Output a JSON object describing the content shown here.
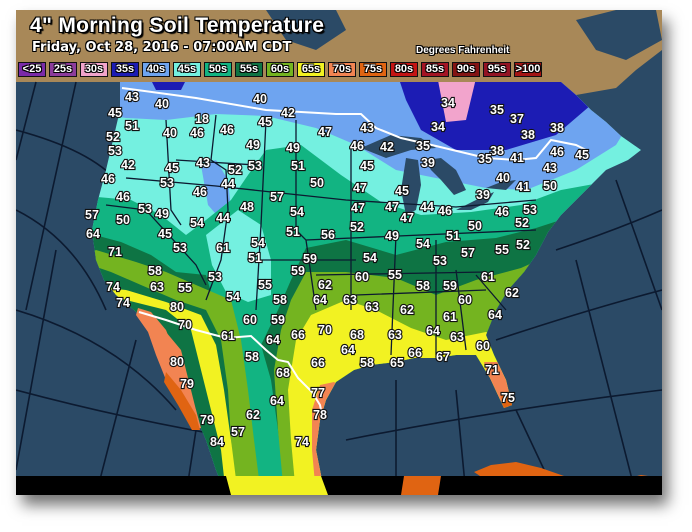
{
  "header": {
    "title": "4\" Morning Soil Temperature",
    "subtitle": "Friday, Oct 28, 2016 - 07:00AM CDT",
    "units": "Degrees Fahrenheit"
  },
  "legend": [
    {
      "label": "<25",
      "color": "#7a2aa8"
    },
    {
      "label": "25s",
      "color": "#8c3c9c"
    },
    {
      "label": "30s",
      "color": "#f2a4cc"
    },
    {
      "label": "35s",
      "color": "#1c1cb4"
    },
    {
      "label": "40s",
      "color": "#6ea4f0"
    },
    {
      "label": "45s",
      "color": "#74f0e0"
    },
    {
      "label": "50s",
      "color": "#12b482"
    },
    {
      "label": "55s",
      "color": "#0e7444"
    },
    {
      "label": "60s",
      "color": "#74b420"
    },
    {
      "label": "65s",
      "color": "#f2f222"
    },
    {
      "label": "70s",
      "color": "#f28452"
    },
    {
      "label": "75s",
      "color": "#e06412"
    },
    {
      "label": "80s",
      "color": "#c41414"
    },
    {
      "label": "85s",
      "color": "#a41424"
    },
    {
      "label": "90s",
      "color": "#841414"
    },
    {
      "label": "95s",
      "color": "#941424"
    },
    {
      "label": ">100",
      "color": "#a41414"
    }
  ],
  "colors": {
    "ocean": "#2b4a66",
    "unmapped_land": "#a88858",
    "borders": "#ffffff",
    "lines": "#0c1a30"
  },
  "station_values": [
    43,
    40,
    40,
    45,
    51,
    18,
    40,
    46,
    46,
    45,
    42,
    47,
    52,
    53,
    42,
    49,
    49,
    45,
    43,
    52,
    53,
    51,
    46,
    53,
    46,
    44,
    50,
    46,
    57,
    48,
    53,
    49,
    57,
    50,
    54,
    44,
    54,
    64,
    45,
    51,
    56,
    71,
    53,
    61,
    54,
    51,
    59,
    59,
    58,
    53,
    43,
    34,
    34,
    35,
    37,
    38,
    38,
    46,
    42,
    35,
    38,
    35,
    41,
    46,
    45,
    45,
    39,
    40,
    41,
    43,
    50,
    47,
    45,
    39,
    47,
    47,
    44,
    46,
    46,
    53,
    47,
    52,
    50,
    52,
    49,
    51,
    54,
    55,
    52,
    54,
    53,
    57,
    60,
    55,
    61,
    74,
    63,
    55,
    54,
    55,
    58,
    64,
    63,
    62,
    74,
    80,
    70,
    60,
    59,
    61,
    64,
    66,
    70,
    68,
    64,
    58,
    66,
    80,
    79,
    68,
    77,
    64,
    62,
    78,
    79,
    57,
    84,
    74,
    63,
    58,
    59,
    62,
    60,
    62,
    61,
    64,
    63,
    64,
    63,
    60,
    58,
    65,
    66,
    67,
    71,
    75
  ]
}
